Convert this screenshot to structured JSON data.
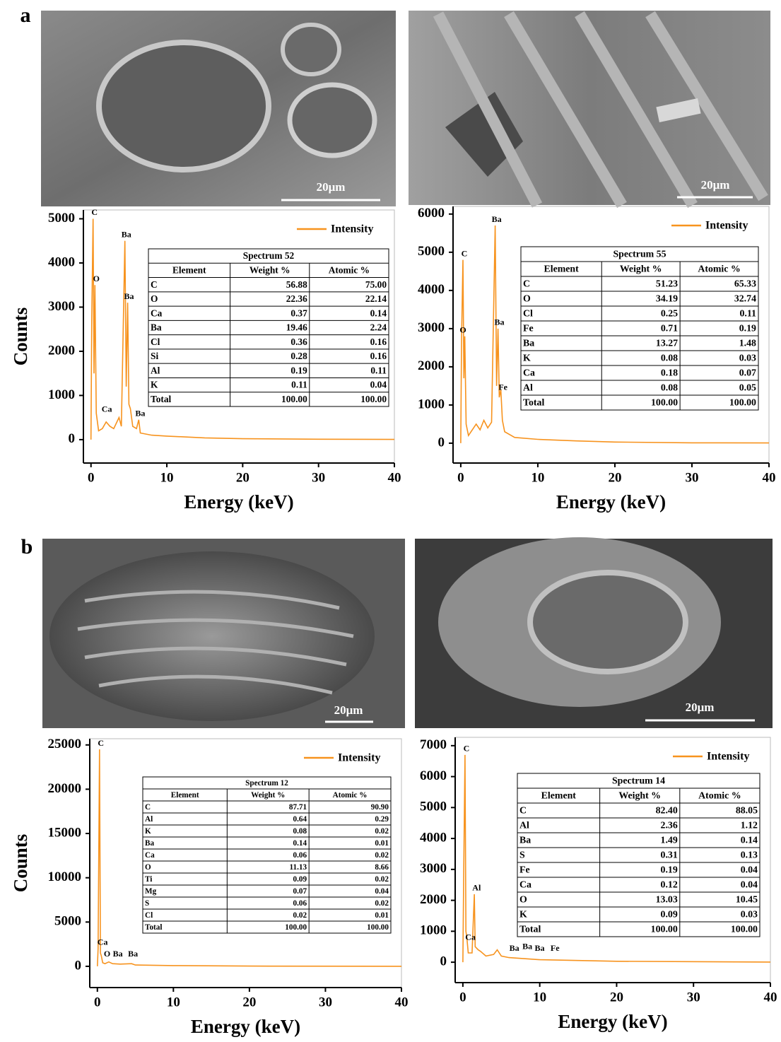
{
  "panel_labels": [
    "a",
    "b"
  ],
  "images": [
    {
      "scale_bar": "20μm"
    },
    {
      "scale_bar": "20μm"
    },
    {
      "scale_bar": "20μm"
    },
    {
      "scale_bar": "20μm"
    }
  ],
  "chart_data": [
    {
      "type": "line",
      "xlabel": "Energy (keV)",
      "ylabel": "Counts",
      "x": [
        0,
        0.1,
        0.28,
        0.4,
        0.52,
        0.7,
        1,
        1.5,
        2,
        2.5,
        3,
        3.7,
        4,
        4.47,
        4.65,
        4.83,
        5,
        5.2,
        5.5,
        6,
        6.3,
        6.5,
        8,
        10,
        15,
        20,
        30,
        40
      ],
      "series": [
        {
          "name": "Intensity",
          "color": "#f7931e",
          "values": [
            0,
            2700,
            5000,
            1500,
            3500,
            600,
            200,
            250,
            400,
            300,
            250,
            500,
            300,
            4500,
            1200,
            3100,
            800,
            700,
            300,
            250,
            450,
            150,
            100,
            80,
            40,
            20,
            10,
            5
          ]
        }
      ],
      "xlim": [
        -1,
        40
      ],
      "ylim": [
        -530,
        5200
      ],
      "xticks": [
        0,
        10,
        20,
        30,
        40
      ],
      "yticks": [
        0,
        1000,
        2000,
        3000,
        4000,
        5000
      ],
      "legend": "upper right",
      "annotations": [
        {
          "text": "C",
          "x": 0.28,
          "y": 5000
        },
        {
          "text": "O",
          "x": 0.52,
          "y": 3500
        },
        {
          "text": "Ba",
          "x": 4.47,
          "y": 4500
        },
        {
          "text": "Ba",
          "x": 4.83,
          "y": 3100
        },
        {
          "text": "Ca",
          "x": 1.9,
          "y": 550
        },
        {
          "text": "Ba",
          "x": 6.3,
          "y": 450
        }
      ],
      "table": {
        "title": "Spectrum 52",
        "columns": [
          "Element",
          "Weight %",
          "Atomic %"
        ],
        "rows": [
          [
            "C",
            "56.88",
            "75.00"
          ],
          [
            "O",
            "22.36",
            "22.14"
          ],
          [
            "Ca",
            "0.37",
            "0.14"
          ],
          [
            "Ba",
            "19.46",
            "2.24"
          ],
          [
            "Cl",
            "0.36",
            "0.16"
          ],
          [
            "Si",
            "0.28",
            "0.16"
          ],
          [
            "Al",
            "0.19",
            "0.11"
          ],
          [
            "K",
            "0.11",
            "0.04"
          ],
          [
            "Total",
            "100.00",
            "100.00"
          ]
        ]
      }
    },
    {
      "type": "line",
      "xlabel": "Energy (keV)",
      "x": [
        0,
        0.1,
        0.28,
        0.4,
        0.52,
        0.7,
        1,
        2,
        2.5,
        3,
        3.5,
        4,
        4.47,
        4.65,
        4.83,
        5,
        5.2,
        5.4,
        5.7,
        7,
        10,
        15,
        20,
        30,
        40
      ],
      "series": [
        {
          "name": "Intensity",
          "color": "#f7931e",
          "values": [
            0,
            2700,
            4800,
            1700,
            2800,
            500,
            200,
            500,
            350,
            600,
            400,
            550,
            5700,
            1500,
            3000,
            1200,
            1400,
            600,
            300,
            150,
            100,
            60,
            30,
            10,
            5
          ]
        }
      ],
      "xlim": [
        -1,
        40
      ],
      "ylim": [
        -520,
        6200
      ],
      "xticks": [
        0,
        10,
        20,
        30,
        40
      ],
      "yticks": [
        0,
        1000,
        2000,
        3000,
        4000,
        5000,
        6000
      ],
      "legend": "upper right",
      "annotations": [
        {
          "text": "Ba",
          "x": 4.47,
          "y": 5700
        },
        {
          "text": "C",
          "x": 0.28,
          "y": 4800
        },
        {
          "text": "O",
          "x": 0.1,
          "y": 2800
        },
        {
          "text": "Ba",
          "x": 4.83,
          "y": 3000
        },
        {
          "text": "Fe",
          "x": 5.3,
          "y": 1300
        }
      ],
      "table": {
        "title": "Spectrum 55",
        "columns": [
          "Element",
          "Weight %",
          "Atomic %"
        ],
        "rows": [
          [
            "C",
            "51.23",
            "65.33"
          ],
          [
            "O",
            "34.19",
            "32.74"
          ],
          [
            "Cl",
            "0.25",
            "0.11"
          ],
          [
            "Fe",
            "0.71",
            "0.19"
          ],
          [
            "Ba",
            "13.27",
            "1.48"
          ],
          [
            "K",
            "0.08",
            "0.03"
          ],
          [
            "Ca",
            "0.18",
            "0.07"
          ],
          [
            "Al",
            "0.08",
            "0.05"
          ],
          [
            "Total",
            "100.00",
            "100.00"
          ]
        ]
      }
    },
    {
      "type": "line",
      "xlabel": "Energy (keV)",
      "ylabel": "Counts",
      "x": [
        0,
        0.1,
        0.28,
        0.4,
        0.52,
        0.7,
        1,
        1.5,
        2,
        3,
        4.5,
        5,
        10,
        20,
        40
      ],
      "series": [
        {
          "name": "Intensity",
          "color": "#f7931e",
          "values": [
            0,
            2000,
            24500,
            1500,
            1200,
            400,
            300,
            500,
            300,
            250,
            300,
            150,
            80,
            30,
            5
          ]
        }
      ],
      "xlim": [
        -1,
        40
      ],
      "ylim": [
        -2400,
        25700
      ],
      "xticks": [
        0,
        10,
        20,
        30,
        40
      ],
      "yticks": [
        0,
        5000,
        10000,
        15000,
        20000,
        25000
      ],
      "legend": "upper right",
      "annotations": [
        {
          "text": "C",
          "x": 0.28,
          "y": 24500
        },
        {
          "text": "Ca",
          "x": 0.5,
          "y": 2000
        },
        {
          "text": "O",
          "x": 1.1,
          "y": 700
        },
        {
          "text": "Ba",
          "x": 2.5,
          "y": 700
        },
        {
          "text": "Ba",
          "x": 4.5,
          "y": 700
        }
      ],
      "table": {
        "title": "Spectrum 12",
        "columns": [
          "Element",
          "Weight %",
          "Atomic %"
        ],
        "rows": [
          [
            "C",
            "87.71",
            "90.90"
          ],
          [
            "Al",
            "0.64",
            "0.29"
          ],
          [
            "K",
            "0.08",
            "0.02"
          ],
          [
            "Ba",
            "0.14",
            "0.01"
          ],
          [
            "Ca",
            "0.06",
            "0.02"
          ],
          [
            "O",
            "11.13",
            "8.66"
          ],
          [
            "Ti",
            "0.09",
            "0.02"
          ],
          [
            "Mg",
            "0.07",
            "0.04"
          ],
          [
            "S",
            "0.06",
            "0.02"
          ],
          [
            "Cl",
            "0.02",
            "0.01"
          ],
          [
            "Total",
            "100.00",
            "100.00"
          ]
        ]
      }
    },
    {
      "type": "line",
      "xlabel": "Energy (keV)",
      "x": [
        0,
        0.1,
        0.28,
        0.4,
        0.52,
        0.7,
        1.2,
        1.49,
        1.6,
        2,
        2.3,
        3,
        4,
        4.47,
        5,
        6,
        10,
        20,
        40
      ],
      "series": [
        {
          "name": "Intensity",
          "color": "#f7931e",
          "values": [
            0,
            2700,
            6700,
            1000,
            800,
            300,
            300,
            2200,
            500,
            400,
            350,
            200,
            250,
            400,
            200,
            150,
            80,
            30,
            5
          ]
        }
      ],
      "xlim": [
        -1,
        40
      ],
      "ylim": [
        -660,
        7270
      ],
      "xticks": [
        0,
        10,
        20,
        30,
        40
      ],
      "yticks": [
        0,
        1000,
        2000,
        3000,
        4000,
        5000,
        6000,
        7000
      ],
      "legend": "upper right",
      "annotations": [
        {
          "text": "C",
          "x": 0.28,
          "y": 6700
        },
        {
          "text": "Al",
          "x": 1.6,
          "y": 2200
        },
        {
          "text": "Ca",
          "x": 0.8,
          "y": 600
        },
        {
          "text": "Ba",
          "x": 6.5,
          "y": 250
        },
        {
          "text": "Ba",
          "x": 8.2,
          "y": 300
        },
        {
          "text": "Ba",
          "x": 9.8,
          "y": 250
        },
        {
          "text": "Fe",
          "x": 11.8,
          "y": 250
        }
      ],
      "table": {
        "title": "Spectrum 14",
        "columns": [
          "Element",
          "Weight %",
          "Atomic %"
        ],
        "rows": [
          [
            "C",
            "82.40",
            "88.05"
          ],
          [
            "Al",
            "2.36",
            "1.12"
          ],
          [
            "Ba",
            "1.49",
            "0.14"
          ],
          [
            "S",
            "0.31",
            "0.13"
          ],
          [
            "Fe",
            "0.19",
            "0.04"
          ],
          [
            "Ca",
            "0.12",
            "0.04"
          ],
          [
            "O",
            "13.03",
            "10.45"
          ],
          [
            "K",
            "0.09",
            "0.03"
          ],
          [
            "Total",
            "100.00",
            "100.00"
          ]
        ]
      }
    }
  ]
}
